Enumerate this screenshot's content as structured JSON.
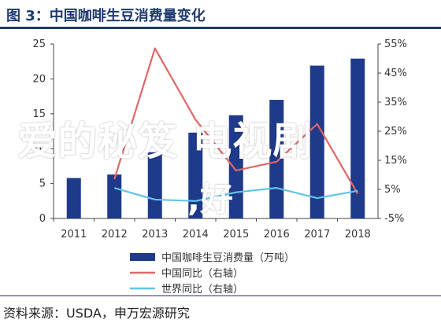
{
  "header": {
    "title": "图 3：中国咖啡生豆消费量变化"
  },
  "chart_data": {
    "type": "bar",
    "categories": [
      "2011",
      "2012",
      "2013",
      "2014",
      "2015",
      "2016",
      "2017",
      "2018"
    ],
    "left_axis": {
      "ylim": [
        0,
        25
      ],
      "ticks": [
        "0",
        "5",
        "10",
        "15",
        "20",
        "25"
      ]
    },
    "right_axis": {
      "ylim": [
        -5,
        55
      ],
      "ticks": [
        "-5%",
        "5%",
        "15%",
        "25%",
        "35%",
        "45%",
        "55%"
      ]
    },
    "series": [
      {
        "name": "中国咖啡生豆消费量（万吨）",
        "axis": "left",
        "kind": "bar",
        "color": "#1f3a8a",
        "values": [
          5.8,
          6.3,
          9.5,
          12.3,
          14.8,
          17.0,
          21.9,
          22.9
        ]
      },
      {
        "name": "中国同比（右轴）",
        "axis": "right",
        "kind": "line",
        "color": "#e06666",
        "values": [
          null,
          8.5,
          53.5,
          29.0,
          11.5,
          14.5,
          27.5,
          3.5
        ]
      },
      {
        "name": "世界同比（右轴）",
        "axis": "right",
        "kind": "line",
        "color": "#62c3e8",
        "values": [
          null,
          5.5,
          1.5,
          1.0,
          4.0,
          5.5,
          2.0,
          4.5
        ]
      }
    ],
    "legend_position": "bottom"
  },
  "watermark": {
    "line1": "爱的秘笈 电视剧",
    "line2": ",好"
  },
  "footer": {
    "source": "资料来源：USDA，申万宏源研究"
  }
}
